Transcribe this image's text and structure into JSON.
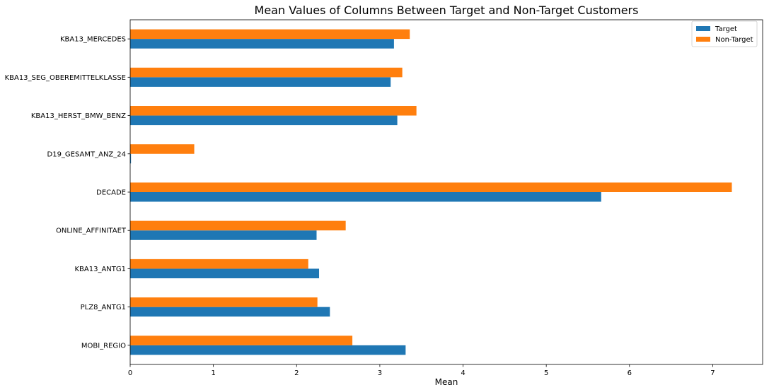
{
  "chart_data": {
    "type": "bar",
    "orientation": "horizontal",
    "title": "Mean Values of Columns Between Target and Non-Target Customers",
    "xlabel": "Mean",
    "ylabel": "",
    "xlim": [
      0,
      7.6
    ],
    "xticks": [
      "0",
      "1",
      "2",
      "3",
      "4",
      "5",
      "6",
      "7"
    ],
    "categories": [
      "MOBI_REGIO",
      "PLZ8_ANTG1",
      "KBA13_ANTG1",
      "ONLINE_AFFINITAET",
      "DECADE",
      "D19_GESAMT_ANZ_24",
      "KBA13_HERST_BMW_BENZ",
      "KBA13_SEG_OBEREMITTELKLASSE",
      "KBA13_MERCEDES"
    ],
    "series": [
      {
        "name": "Target",
        "color": "#1f77b4",
        "values": [
          3.31,
          2.4,
          2.27,
          2.24,
          5.66,
          0.01,
          3.21,
          3.13,
          3.17
        ]
      },
      {
        "name": "Non-Target",
        "color": "#ff7f0e",
        "values": [
          2.67,
          2.25,
          2.14,
          2.59,
          7.23,
          0.77,
          3.44,
          3.27,
          3.36
        ]
      }
    ],
    "grid": false,
    "legend_position": "top-right"
  }
}
